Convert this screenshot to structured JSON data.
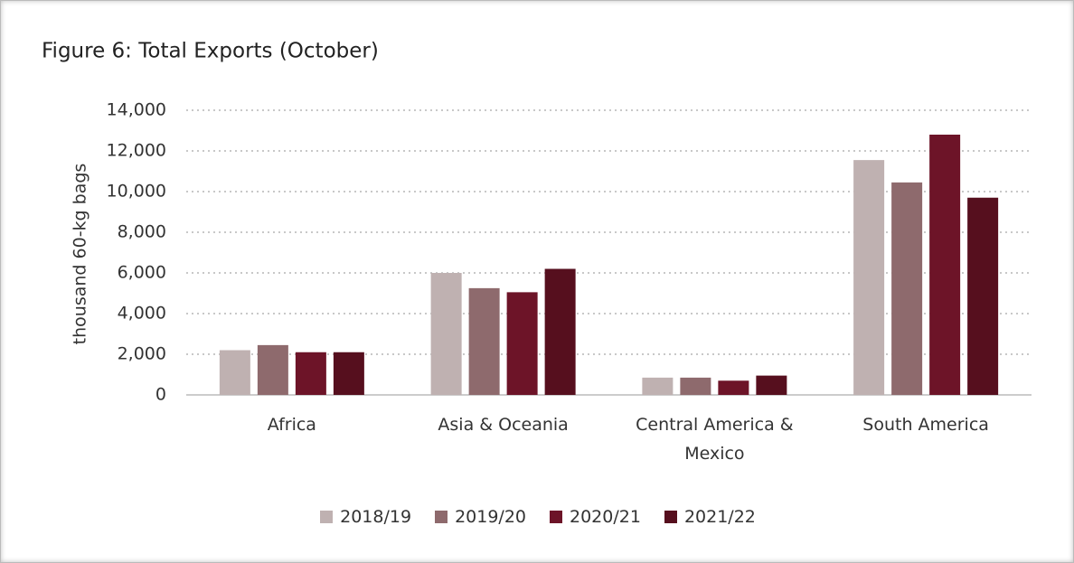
{
  "chart_data": {
    "type": "bar",
    "title": "Figure 6: Total Exports (October)",
    "ylabel": "thousand 60-kg bags",
    "categories": [
      "Africa",
      "Asia & Oceania",
      "Central America & Mexico",
      "South America"
    ],
    "series": [
      {
        "name": "2018/19",
        "color": "#bfb1b1",
        "values": [
          2200,
          6000,
          850,
          11550
        ]
      },
      {
        "name": "2019/20",
        "color": "#8e6a6d",
        "values": [
          2450,
          5250,
          850,
          10450
        ]
      },
      {
        "name": "2020/21",
        "color": "#6d1428",
        "values": [
          2100,
          5050,
          700,
          12800
        ]
      },
      {
        "name": "2021/22",
        "color": "#560f1e",
        "values": [
          2100,
          6200,
          950,
          9700
        ]
      }
    ],
    "ylim": [
      0,
      14000
    ],
    "yticks": [
      0,
      {
        "value": 2000,
        "label": "2,000"
      },
      {
        "value": 4000,
        "label": "4,000"
      },
      {
        "value": 6000,
        "label": "6,000"
      },
      {
        "value": 8000,
        "label": "8,000"
      },
      {
        "value": 10000,
        "label": "10,000"
      },
      {
        "value": 12000,
        "label": "12,000"
      },
      {
        "value": 14000,
        "label": "14,000"
      }
    ],
    "grid": true,
    "legend": "bottom"
  }
}
